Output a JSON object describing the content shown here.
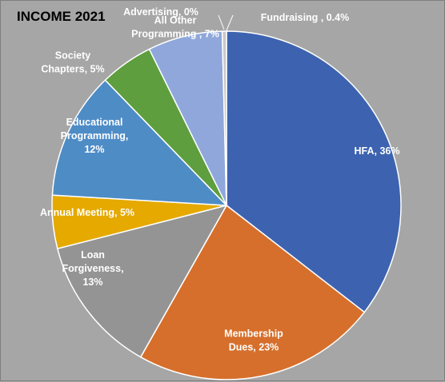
{
  "chart_data": {
    "type": "pie",
    "title": "INCOME 2021",
    "label_color": "#ffffff",
    "background": "#a6a6a6",
    "start_angle_deg": 0,
    "direction": "clockwise",
    "slices": [
      {
        "name": "HFA",
        "value": 36,
        "label_lines": [
          "HFA, 36%"
        ],
        "color": "#3d63b0"
      },
      {
        "name": "Membership Dues",
        "value": 23,
        "label_lines": [
          "Membership",
          "Dues, 23%"
        ],
        "color": "#d66f2c"
      },
      {
        "name": "Loan Forgiveness",
        "value": 13,
        "label_lines": [
          "Loan",
          "Forgiveness,",
          "13%"
        ],
        "color": "#949494"
      },
      {
        "name": "Annual Meeting",
        "value": 5,
        "label_lines": [
          "Annual Meeting, 5%"
        ],
        "color": "#e5a900"
      },
      {
        "name": "Educational Programming",
        "value": 12,
        "label_lines": [
          "Educational",
          "Programming,",
          "12%"
        ],
        "color": "#4e8cc6"
      },
      {
        "name": "Society Chapters",
        "value": 5,
        "label_lines": [
          "Society",
          "Chapters, 5%"
        ],
        "color": "#5e9e3e"
      },
      {
        "name": "All Other Programming",
        "value": 7,
        "label_lines": [
          "All Other",
          "Programming , 7%"
        ],
        "color": "#8fa7db"
      },
      {
        "name": "Advertising",
        "value": 0,
        "label_lines": [
          "Advertising, 0%"
        ],
        "color": "#3b5a9a"
      },
      {
        "name": "Fundraising",
        "value": 0.4,
        "label_lines": [
          "Fundraising , 0.4%"
        ],
        "color": "#c9c9c9"
      }
    ]
  }
}
